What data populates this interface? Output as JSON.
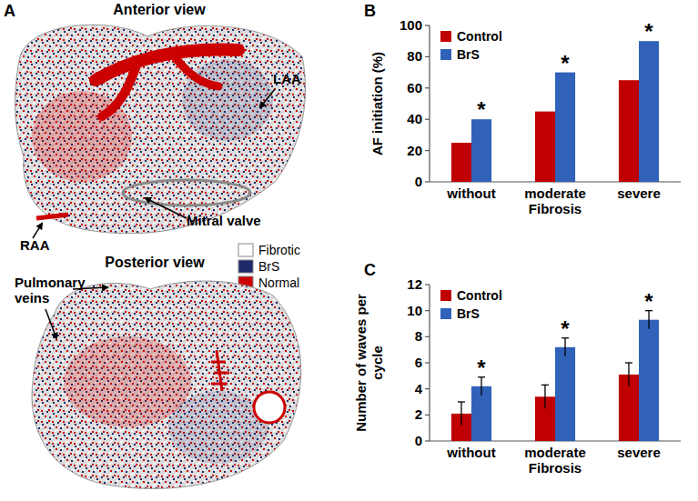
{
  "panel_a": {
    "panel": "A",
    "views": [
      "Anterior view",
      "Posterior view"
    ],
    "labels": [
      "LAA",
      "Mitral valve",
      "RAA",
      "Pulmonary veins"
    ],
    "legend": [
      {
        "name": "Fibrotic",
        "color": "#ffffff"
      },
      {
        "name": "BrS",
        "color": "#1f2a6b"
      },
      {
        "name": "Normal",
        "color": "#cc0000"
      }
    ]
  },
  "chart_data": [
    {
      "panel": "B",
      "type": "bar",
      "y_label": "AF initiation (%)",
      "x_label": "Fibrosis",
      "categories": [
        "without",
        "moderate",
        "severe"
      ],
      "series": [
        {
          "name": "Control",
          "color": "#c00000",
          "values": [
            25,
            45,
            65
          ]
        },
        {
          "name": "BrS",
          "color": "#2f62b8",
          "values": [
            40,
            70,
            90
          ]
        }
      ],
      "ylim": [
        0,
        100
      ],
      "yticks": [
        0,
        20,
        40,
        60,
        80,
        100
      ],
      "grid": false,
      "legend": "top-left",
      "annotations": [
        {
          "text": "*",
          "category": "without",
          "series": "BrS"
        },
        {
          "text": "*",
          "category": "moderate",
          "series": "BrS"
        },
        {
          "text": "*",
          "category": "severe",
          "series": "BrS"
        }
      ]
    },
    {
      "panel": "C",
      "type": "bar",
      "y_label": "Number of waves per cycle",
      "x_label": "Fibrosis",
      "categories": [
        "without",
        "moderate",
        "severe"
      ],
      "series": [
        {
          "name": "Control",
          "color": "#c00000",
          "values": [
            2.1,
            3.4,
            5.1
          ],
          "errors": [
            0.9,
            0.9,
            0.9
          ]
        },
        {
          "name": "BrS",
          "color": "#2f62b8",
          "values": [
            4.2,
            7.2,
            9.3
          ],
          "errors": [
            0.7,
            0.7,
            0.7
          ]
        }
      ],
      "ylim": [
        0,
        12
      ],
      "yticks": [
        0,
        2,
        4,
        6,
        8,
        10,
        12
      ],
      "grid": false,
      "legend": "top-left",
      "annotations": [
        {
          "text": "*",
          "category": "without",
          "series": "BrS"
        },
        {
          "text": "*",
          "category": "moderate",
          "series": "BrS"
        },
        {
          "text": "*",
          "category": "severe",
          "series": "BrS"
        }
      ]
    }
  ]
}
